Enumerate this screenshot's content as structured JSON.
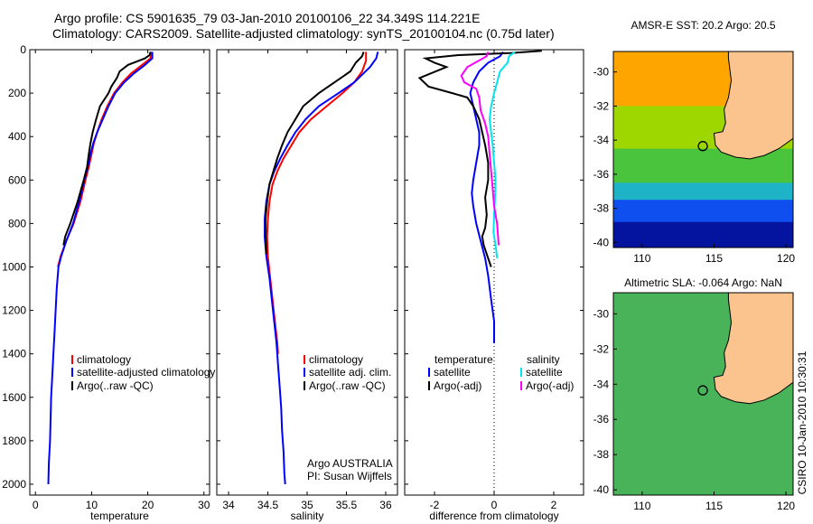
{
  "header": {
    "line1": "Argo profile: CS 5901635_79 03-Jan-2010 20100106_22 34.349S 114.221E",
    "line2": "Climatology: CARS2009. Satellite-adjusted climatology: synTS_20100104.nc (0.75d later)"
  },
  "colors": {
    "climatology": "#ff0000",
    "satellite": "#0000ff",
    "argo": "#000000",
    "satellite_salinity": "#00e5ee",
    "argo_salinity": "#ff00ff",
    "land": "#fbc48e"
  },
  "side_label": "CSIRO 10-Jan-2010 10:30:31",
  "chart_data": [
    {
      "type": "line",
      "id": "temperature",
      "xlabel": "temperature",
      "ylabel": "",
      "xlim": [
        -1,
        31
      ],
      "ylim": [
        2050,
        0
      ],
      "xticks": [
        0,
        10,
        20,
        30
      ],
      "yticks": [
        0,
        200,
        400,
        600,
        800,
        1000,
        1200,
        1400,
        1600,
        1800,
        2000
      ],
      "legend": {
        "placement": "bottom-right",
        "entries": [
          "climatology",
          "satellite-adjusted climatology",
          "Argo(..raw -QC)"
        ]
      },
      "series": [
        {
          "name": "climatology",
          "color": "#ff0000",
          "depth_max": 1000,
          "points": [
            [
              20.5,
              10
            ],
            [
              20.5,
              40
            ],
            [
              19,
              70
            ],
            [
              17,
              110
            ],
            [
              15.5,
              150
            ],
            [
              14,
              200
            ],
            [
              12.8,
              260
            ],
            [
              11.8,
              320
            ],
            [
              11,
              380
            ],
            [
              10.4,
              430
            ],
            [
              10,
              480
            ],
            [
              9.5,
              540
            ],
            [
              8.9,
              600
            ],
            [
              8,
              700
            ],
            [
              6.8,
              800
            ],
            [
              5.5,
              880
            ],
            [
              4.5,
              950
            ],
            [
              4,
              1000
            ]
          ]
        },
        {
          "name": "satellite-adjusted climatology",
          "color": "#0000ff",
          "depth_max": 2000,
          "points": [
            [
              20.8,
              10
            ],
            [
              20.8,
              40
            ],
            [
              19.5,
              70
            ],
            [
              17.5,
              110
            ],
            [
              15.8,
              150
            ],
            [
              14.2,
              200
            ],
            [
              13,
              260
            ],
            [
              12,
              320
            ],
            [
              11,
              380
            ],
            [
              10.3,
              430
            ],
            [
              9.8,
              480
            ],
            [
              9.3,
              540
            ],
            [
              8.7,
              600
            ],
            [
              7.8,
              700
            ],
            [
              6.7,
              800
            ],
            [
              5.5,
              880
            ],
            [
              4.6,
              950
            ],
            [
              4.1,
              1000
            ],
            [
              3.8,
              1100
            ],
            [
              3.6,
              1200
            ],
            [
              3.4,
              1300
            ],
            [
              3.2,
              1400
            ],
            [
              3.0,
              1500
            ],
            [
              2.8,
              1600
            ],
            [
              2.7,
              1700
            ],
            [
              2.6,
              1800
            ],
            [
              2.4,
              1900
            ],
            [
              2.3,
              2000
            ]
          ]
        },
        {
          "name": "Argo(..raw -QC)",
          "color": "#000000",
          "depth_max": 900,
          "points": [
            [
              20.5,
              10
            ],
            [
              20.3,
              25
            ],
            [
              19.5,
              40
            ],
            [
              18,
              55
            ],
            [
              16.5,
              70
            ],
            [
              15,
              100
            ],
            [
              14.5,
              130
            ],
            [
              13.5,
              170
            ],
            [
              13,
              200
            ],
            [
              11.5,
              260
            ],
            [
              10.8,
              320
            ],
            [
              10.2,
              380
            ],
            [
              9.8,
              430
            ],
            [
              9.5,
              480
            ],
            [
              9.2,
              540
            ],
            [
              8.6,
              600
            ],
            [
              7.5,
              700
            ],
            [
              6.2,
              800
            ],
            [
              5.3,
              860
            ],
            [
              5,
              900
            ]
          ]
        }
      ]
    },
    {
      "type": "line",
      "id": "salinity",
      "xlabel": "salinity",
      "ylabel": "",
      "xlim": [
        33.85,
        36.15
      ],
      "ylim": [
        2050,
        0
      ],
      "xticks": [
        34,
        34.5,
        35,
        35.5,
        36
      ],
      "legend": {
        "placement": "bottom-right",
        "entries": [
          "climatology",
          "satellite adj. clim.",
          "Argo(..raw -QC)"
        ]
      },
      "annotations": [
        "Argo AUSTRALIA",
        "PI: Susan Wijffels"
      ],
      "series": [
        {
          "name": "climatology",
          "color": "#ff0000",
          "depth_max": 1400,
          "points": [
            [
              35.75,
              10
            ],
            [
              35.75,
              50
            ],
            [
              35.7,
              100
            ],
            [
              35.6,
              150
            ],
            [
              35.45,
              200
            ],
            [
              35.25,
              260
            ],
            [
              35.05,
              320
            ],
            [
              34.9,
              380
            ],
            [
              34.8,
              440
            ],
            [
              34.7,
              500
            ],
            [
              34.62,
              560
            ],
            [
              34.56,
              620
            ],
            [
              34.52,
              700
            ],
            [
              34.5,
              780
            ],
            [
              34.49,
              860
            ],
            [
              34.5,
              950
            ],
            [
              34.53,
              1050
            ],
            [
              34.56,
              1150
            ],
            [
              34.59,
              1250
            ],
            [
              34.62,
              1350
            ],
            [
              34.63,
              1400
            ]
          ]
        },
        {
          "name": "satellite adj. clim.",
          "color": "#0000ff",
          "depth_max": 2000,
          "points": [
            [
              35.9,
              10
            ],
            [
              35.88,
              40
            ],
            [
              35.8,
              80
            ],
            [
              35.6,
              150
            ],
            [
              35.4,
              200
            ],
            [
              35.15,
              260
            ],
            [
              34.98,
              320
            ],
            [
              34.85,
              380
            ],
            [
              34.75,
              440
            ],
            [
              34.66,
              500
            ],
            [
              34.58,
              560
            ],
            [
              34.52,
              620
            ],
            [
              34.48,
              700
            ],
            [
              34.46,
              780
            ],
            [
              34.46,
              860
            ],
            [
              34.48,
              950
            ],
            [
              34.52,
              1050
            ],
            [
              34.55,
              1150
            ],
            [
              34.58,
              1250
            ],
            [
              34.61,
              1350
            ],
            [
              34.63,
              1450
            ],
            [
              34.65,
              1550
            ],
            [
              34.67,
              1650
            ],
            [
              34.68,
              1750
            ],
            [
              34.7,
              1850
            ],
            [
              34.71,
              1950
            ],
            [
              34.72,
              2000
            ]
          ]
        },
        {
          "name": "Argo(..raw -QC)",
          "color": "#000000",
          "depth_max": 940,
          "points": [
            [
              35.72,
              10
            ],
            [
              35.7,
              30
            ],
            [
              35.62,
              60
            ],
            [
              35.55,
              100
            ],
            [
              35.35,
              150
            ],
            [
              35.15,
              200
            ],
            [
              34.95,
              260
            ],
            [
              34.85,
              320
            ],
            [
              34.75,
              380
            ],
            [
              34.68,
              440
            ],
            [
              34.62,
              500
            ],
            [
              34.57,
              560
            ],
            [
              34.52,
              620
            ],
            [
              34.49,
              700
            ],
            [
              34.47,
              780
            ],
            [
              34.47,
              860
            ],
            [
              34.48,
              940
            ]
          ]
        }
      ]
    },
    {
      "type": "line",
      "id": "difference",
      "xlabel": "difference from climatology",
      "ylabel": "",
      "xlim": [
        -3,
        3
      ],
      "ylim": [
        2050,
        0
      ],
      "xticks": [
        -2,
        0,
        2
      ],
      "legend": {
        "placement": "bottom",
        "entries": [
          "temperature",
          "satellite",
          "Argo(-adj)",
          "salinity",
          "satellite",
          "Argo(-adj)"
        ]
      },
      "series": [
        {
          "name": "satellite",
          "variable": "temperature",
          "color": "#0000ff",
          "depth_max": 1350,
          "points": [
            [
              0.3,
              10
            ],
            [
              0.2,
              30
            ],
            [
              -0.2,
              60
            ],
            [
              -0.5,
              100
            ],
            [
              -0.7,
              150
            ],
            [
              -0.8,
              200
            ],
            [
              -0.7,
              260
            ],
            [
              -0.6,
              320
            ],
            [
              -0.5,
              380
            ],
            [
              -0.5,
              440
            ],
            [
              -0.6,
              520
            ],
            [
              -0.7,
              600
            ],
            [
              -0.75,
              660
            ],
            [
              -0.7,
              720
            ],
            [
              -0.6,
              800
            ],
            [
              -0.45,
              880
            ],
            [
              -0.3,
              960
            ],
            [
              -0.2,
              1040
            ],
            [
              -0.1,
              1150
            ],
            [
              0,
              1250
            ],
            [
              0,
              1350
            ]
          ]
        },
        {
          "name": "Argo(-adj)",
          "variable": "temperature",
          "color": "#000000",
          "depth_max": 1000,
          "points": [
            [
              1.6,
              5
            ],
            [
              0.6,
              15
            ],
            [
              -1.2,
              25
            ],
            [
              -2.3,
              40
            ],
            [
              -2,
              60
            ],
            [
              -1.6,
              80
            ],
            [
              -2.5,
              130
            ],
            [
              -2.2,
              170
            ],
            [
              -1.4,
              200
            ],
            [
              -0.9,
              220
            ],
            [
              -0.7,
              260
            ],
            [
              -0.5,
              320
            ],
            [
              -0.4,
              380
            ],
            [
              -0.3,
              440
            ],
            [
              -0.2,
              520
            ],
            [
              -0.2,
              600
            ],
            [
              -0.3,
              680
            ],
            [
              -0.25,
              760
            ],
            [
              -0.3,
              820
            ],
            [
              -0.4,
              860
            ],
            [
              -0.35,
              900
            ],
            [
              -0.2,
              960
            ],
            [
              -0.1,
              1000
            ]
          ]
        },
        {
          "name": "satellite",
          "variable": "salinity",
          "color": "#00e5ee",
          "depth_max": 960,
          "points": [
            [
              0.7,
              10
            ],
            [
              0.5,
              30
            ],
            [
              0.45,
              60
            ],
            [
              0.2,
              100
            ],
            [
              0.1,
              150
            ],
            [
              0,
              200
            ],
            [
              -0.1,
              260
            ],
            [
              -0.15,
              320
            ],
            [
              -0.1,
              380
            ],
            [
              -0.05,
              440
            ],
            [
              0,
              520
            ],
            [
              0.05,
              600
            ],
            [
              0.03,
              680
            ],
            [
              0,
              760
            ],
            [
              -0.02,
              840
            ],
            [
              0.05,
              900
            ],
            [
              0.1,
              960
            ]
          ]
        },
        {
          "name": "Argo(-adj)",
          "variable": "salinity",
          "color": "#ff00ff",
          "depth_max": 900,
          "points": [
            [
              -0.2,
              10
            ],
            [
              -0.25,
              30
            ],
            [
              -0.9,
              80
            ],
            [
              -1.1,
              120
            ],
            [
              -1.0,
              150
            ],
            [
              -0.6,
              180
            ],
            [
              -0.5,
              220
            ],
            [
              -0.45,
              280
            ],
            [
              -0.3,
              340
            ],
            [
              -0.2,
              400
            ],
            [
              -0.15,
              480
            ],
            [
              -0.1,
              560
            ],
            [
              -0.05,
              640
            ],
            [
              0,
              720
            ],
            [
              0.1,
              800
            ],
            [
              0.15,
              900
            ]
          ]
        }
      ]
    },
    {
      "type": "heatmap",
      "id": "sst-map",
      "title": "AMSR-E SST: 20.2  Argo: 20.5",
      "xlim": [
        108,
        120.5
      ],
      "ylim": [
        -40.3,
        -28.8
      ],
      "xticks": [
        110,
        115,
        120
      ],
      "yticks": [
        -30,
        -32,
        -34,
        -36,
        -38,
        -40
      ],
      "argo_position": [
        114.221,
        -34.349
      ],
      "field_bands": [
        {
          "lat_from": -28.8,
          "lat_to": -32,
          "color": "#ffa500"
        },
        {
          "lat_from": -32,
          "lat_to": -34.5,
          "color": "#9ed600"
        },
        {
          "lat_from": -34.5,
          "lat_to": -36.5,
          "color": "#49c43c"
        },
        {
          "lat_from": -36.5,
          "lat_to": -37.5,
          "color": "#1fb3c8"
        },
        {
          "lat_from": -37.5,
          "lat_to": -38.8,
          "color": "#0f4ff0"
        },
        {
          "lat_from": -38.8,
          "lat_to": -40.3,
          "color": "#05149e"
        }
      ]
    },
    {
      "type": "heatmap",
      "id": "sla-map",
      "title": "Altimetric SLA: -0.064  Argo: NaN",
      "xlim": [
        108,
        120.5
      ],
      "ylim": [
        -40.3,
        -28.8
      ],
      "xticks": [
        110,
        115,
        120
      ],
      "yticks": [
        -30,
        -32,
        -34,
        -36,
        -38,
        -40
      ],
      "argo_position": [
        114.221,
        -34.349
      ],
      "field_bands": [
        {
          "lat_from": -28.8,
          "lat_to": -40.3,
          "color": "#49b35a"
        }
      ]
    }
  ]
}
